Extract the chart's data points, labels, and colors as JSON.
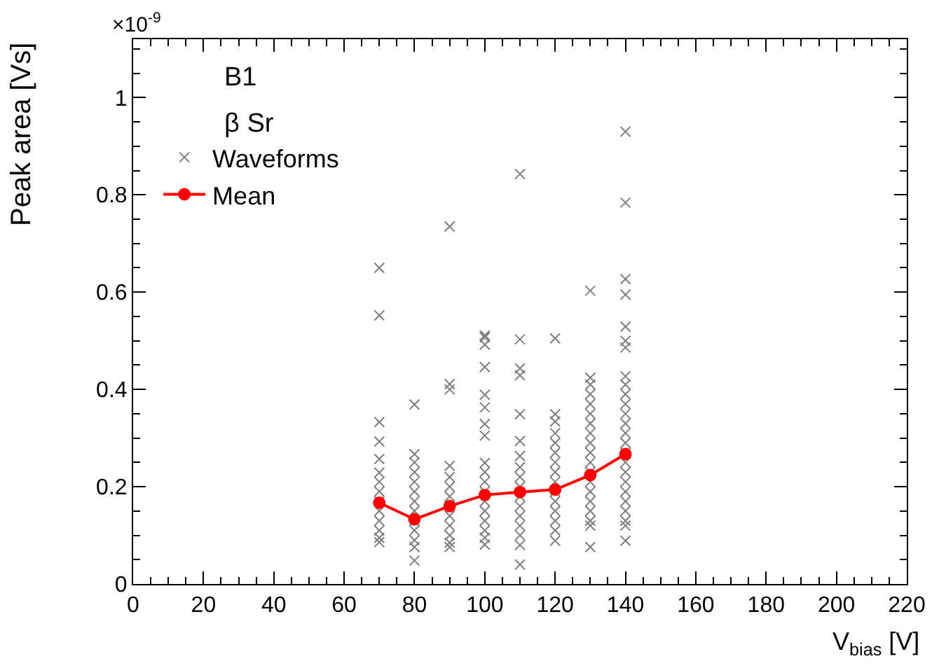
{
  "chart_data": {
    "type": "scatter",
    "xlabel": "V$_{bias}$ [V]",
    "ylabel": "Peak area [Vs]",
    "annotations": [
      "×10$^{-9}$",
      "B1",
      "β Sr"
    ],
    "xlim": [
      0,
      220
    ],
    "xticks": [
      0,
      20,
      40,
      60,
      80,
      100,
      120,
      140,
      160,
      180,
      200,
      220
    ],
    "ylim": [
      0,
      1.12
    ],
    "yticks": [
      0,
      0.2,
      0.4,
      0.6,
      0.8,
      1
    ],
    "grid": false,
    "legend": "top left",
    "series": [
      {
        "name": "Waveforms",
        "type": "scatter",
        "marker": "cross",
        "color": "#7f7f7f",
        "x": [
          70,
          70,
          70,
          70,
          70,
          70,
          70,
          70,
          70,
          70,
          70,
          70,
          70,
          70,
          80,
          80,
          80,
          80,
          80,
          80,
          80,
          80,
          80,
          80,
          80,
          80,
          80,
          90,
          90,
          90,
          90,
          90,
          90,
          90,
          90,
          90,
          90,
          90,
          90,
          90,
          100,
          100,
          100,
          100,
          100,
          100,
          100,
          100,
          100,
          100,
          100,
          100,
          100,
          100,
          100,
          100,
          100,
          100,
          110,
          110,
          110,
          110,
          110,
          110,
          110,
          110,
          110,
          110,
          110,
          110,
          110,
          110,
          110,
          110,
          110,
          120,
          120,
          120,
          120,
          120,
          120,
          120,
          120,
          120,
          120,
          120,
          120,
          120,
          120,
          120,
          130,
          130,
          130,
          130,
          130,
          130,
          130,
          130,
          130,
          130,
          130,
          130,
          130,
          130,
          130,
          130,
          130,
          130,
          130,
          140,
          140,
          140,
          140,
          140,
          140,
          140,
          140,
          140,
          140,
          140,
          140,
          140,
          140,
          140,
          140,
          140,
          140,
          140,
          140,
          140,
          140,
          140,
          140,
          140
        ],
        "values": [
          0.65,
          0.552,
          0.333,
          0.293,
          0.257,
          0.229,
          0.21,
          0.19,
          0.17,
          0.15,
          0.13,
          0.11,
          0.095,
          0.086,
          0.369,
          0.267,
          0.25,
          0.23,
          0.21,
          0.19,
          0.17,
          0.15,
          0.13,
          0.11,
          0.09,
          0.076,
          0.048,
          0.735,
          0.411,
          0.4,
          0.243,
          0.22,
          0.2,
          0.18,
          0.16,
          0.14,
          0.12,
          0.1,
          0.085,
          0.076,
          0.511,
          0.507,
          0.492,
          0.446,
          0.389,
          0.363,
          0.329,
          0.305,
          0.249,
          0.23,
          0.21,
          0.19,
          0.17,
          0.15,
          0.13,
          0.11,
          0.095,
          0.081,
          0.843,
          0.503,
          0.443,
          0.429,
          0.349,
          0.294,
          0.263,
          0.24,
          0.22,
          0.2,
          0.18,
          0.16,
          0.14,
          0.12,
          0.1,
          0.08,
          0.04,
          0.505,
          0.349,
          0.334,
          0.31,
          0.29,
          0.27,
          0.25,
          0.23,
          0.21,
          0.19,
          0.17,
          0.15,
          0.13,
          0.11,
          0.089,
          0.603,
          0.424,
          0.41,
          0.39,
          0.37,
          0.35,
          0.33,
          0.31,
          0.29,
          0.27,
          0.25,
          0.23,
          0.21,
          0.19,
          0.17,
          0.15,
          0.13,
          0.12,
          0.076,
          0.93,
          0.784,
          0.627,
          0.595,
          0.529,
          0.5,
          0.486,
          0.427,
          0.41,
          0.39,
          0.37,
          0.35,
          0.33,
          0.31,
          0.29,
          0.27,
          0.25,
          0.23,
          0.21,
          0.19,
          0.17,
          0.15,
          0.13,
          0.12,
          0.089
        ]
      },
      {
        "name": "Mean",
        "type": "line",
        "marker": "circle",
        "line_style": "solid",
        "color": "#ff0000",
        "x": [
          70,
          80,
          90,
          100,
          110,
          120,
          130,
          140
        ],
        "values": [
          0.167,
          0.133,
          0.16,
          0.183,
          0.189,
          0.194,
          0.224,
          0.267
        ]
      }
    ]
  }
}
